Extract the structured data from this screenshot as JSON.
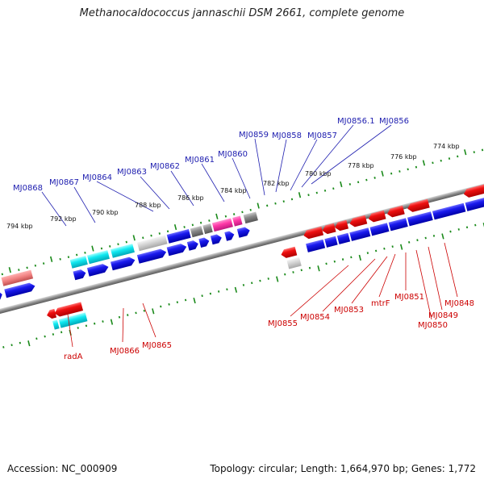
{
  "title": "Methanocaldococcus jannaschii DSM 2661, complete genome",
  "footer": {
    "accession": "Accession: NC_000909",
    "topology": "Topology: circular; Length: 1,664,970 bp; Genes: 1,772"
  },
  "scale_labels": [
    "794 kbp",
    "792 kbp",
    "790 kbp",
    "788 kbp",
    "786 kbp",
    "784 kbp",
    "782 kbp",
    "780 kbp",
    "778 kbp",
    "776 kbp",
    "774 kbp"
  ],
  "top_genes": [
    "MJ0868",
    "MJ0867",
    "MJ0864",
    "MJ0863",
    "MJ0862",
    "MJ0861",
    "MJ0860",
    "MJ0859",
    "MJ0858",
    "MJ0857",
    "MJ0856.1",
    "MJ0856"
  ],
  "bottom_genes": [
    "radA",
    "MJ0866",
    "MJ0865",
    "MJ0855",
    "MJ0854",
    "MJ0853",
    "mtrF",
    "MJ0851",
    "MJ0850",
    "MJ0849",
    "MJ0848"
  ],
  "colors": {
    "top_label": "#2020b0",
    "bottom_label": "#cc0000",
    "forward_cds": "#0000dd",
    "reverse_cds": "#ee0000",
    "cyan_feature": "#00e0e8",
    "pink_feature": "#ff44aa",
    "grey_feature": "#888888",
    "scale_tick": "#1a8a1a"
  }
}
